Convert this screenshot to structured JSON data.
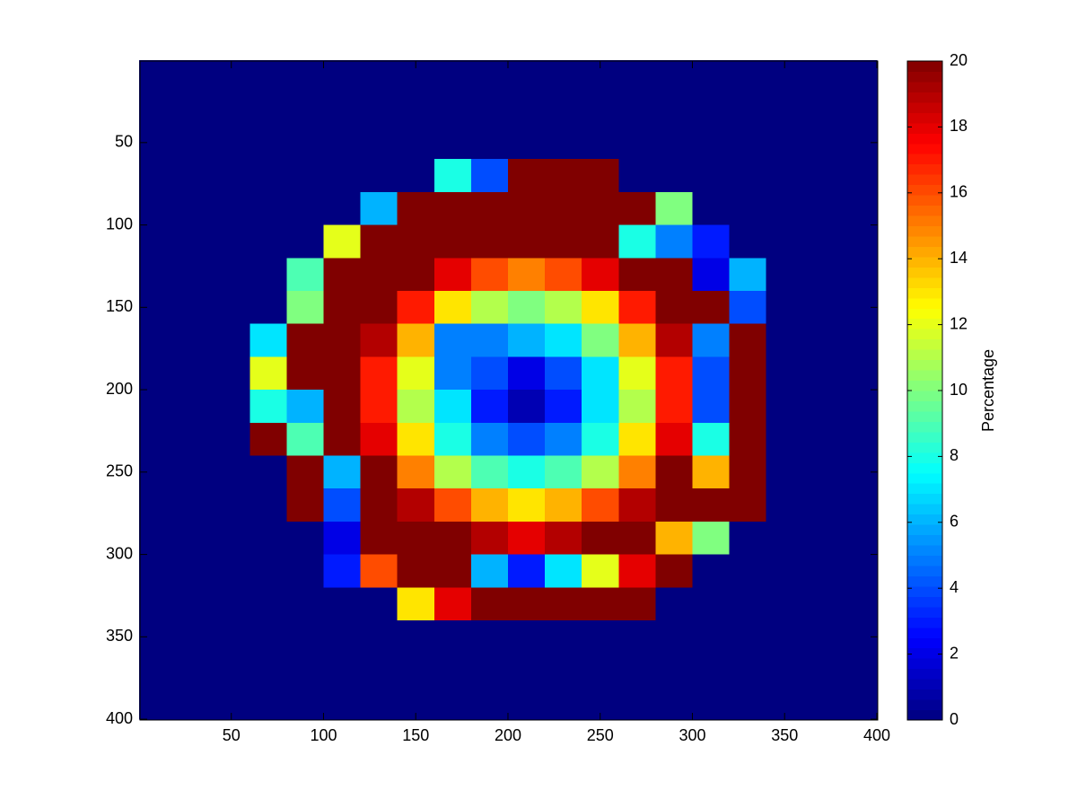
{
  "chart_data": {
    "type": "heatmap",
    "x": [
      10,
      30,
      50,
      70,
      90,
      110,
      130,
      150,
      170,
      190,
      210,
      230,
      250,
      270,
      290,
      310,
      330,
      350,
      370,
      390
    ],
    "y": [
      10,
      30,
      50,
      70,
      90,
      110,
      130,
      150,
      170,
      190,
      210,
      230,
      250,
      270,
      290,
      310,
      330,
      350,
      370,
      390
    ],
    "values": [
      [
        0,
        0,
        0,
        0,
        0,
        0,
        0,
        0,
        0,
        0,
        0,
        0,
        0,
        0,
        0,
        0,
        0,
        0,
        0,
        0
      ],
      [
        0,
        0,
        0,
        0,
        0,
        0,
        0,
        0,
        0,
        0,
        0,
        0,
        0,
        0,
        0,
        0,
        0,
        0,
        0,
        0
      ],
      [
        0,
        0,
        0,
        0,
        0,
        0,
        0,
        0,
        0,
        0,
        0,
        0,
        0,
        0,
        0,
        0,
        0,
        0,
        0,
        0
      ],
      [
        0,
        0,
        0,
        0,
        0,
        0,
        0,
        0,
        8,
        4,
        20,
        20,
        20,
        0,
        0,
        0,
        0,
        0,
        0,
        0
      ],
      [
        0,
        0,
        0,
        0,
        0,
        0,
        6,
        20,
        20,
        20,
        20,
        20,
        20,
        20,
        10,
        0,
        0,
        0,
        0,
        0
      ],
      [
        0,
        0,
        0,
        0,
        0,
        12,
        20,
        20,
        20,
        20,
        20,
        20,
        20,
        8,
        5,
        3,
        0,
        0,
        0,
        0
      ],
      [
        0,
        0,
        0,
        0,
        9,
        20,
        20,
        20,
        18,
        16,
        15,
        16,
        18,
        20,
        20,
        2,
        6,
        0,
        0,
        0
      ],
      [
        0,
        0,
        0,
        0,
        10,
        20,
        20,
        17,
        13,
        11,
        10,
        11,
        13,
        17,
        20,
        20,
        4,
        0,
        0,
        0
      ],
      [
        0,
        0,
        0,
        7,
        20,
        20,
        19,
        14,
        5,
        5,
        6,
        7,
        10,
        14,
        19,
        5,
        20,
        0,
        0,
        0
      ],
      [
        0,
        0,
        0,
        12,
        20,
        20,
        17,
        12,
        5,
        4,
        2,
        4,
        7,
        12,
        17,
        4,
        20,
        0,
        0,
        0
      ],
      [
        0,
        0,
        0,
        8,
        6,
        20,
        17,
        11,
        7,
        3,
        1,
        3,
        7,
        11,
        17,
        4,
        20,
        0,
        0,
        0
      ],
      [
        0,
        0,
        0,
        20,
        9,
        20,
        18,
        13,
        8,
        5,
        4,
        5,
        8,
        13,
        18,
        8,
        20,
        0,
        0,
        0
      ],
      [
        0,
        0,
        0,
        0,
        20,
        6,
        20,
        15,
        11,
        9,
        8,
        9,
        11,
        15,
        20,
        14,
        20,
        0,
        0,
        0
      ],
      [
        0,
        0,
        0,
        0,
        20,
        4,
        20,
        19,
        16,
        14,
        13,
        14,
        16,
        19,
        20,
        20,
        20,
        0,
        0,
        0
      ],
      [
        0,
        0,
        0,
        0,
        0,
        2,
        20,
        20,
        20,
        19,
        18,
        19,
        20,
        20,
        14,
        10,
        0,
        0,
        0,
        0
      ],
      [
        0,
        0,
        0,
        0,
        0,
        3,
        16,
        20,
        20,
        6,
        3,
        7,
        12,
        18,
        20,
        0,
        0,
        0,
        0,
        0
      ],
      [
        0,
        0,
        0,
        0,
        0,
        0,
        0,
        13,
        18,
        20,
        20,
        20,
        20,
        20,
        0,
        0,
        0,
        0,
        0,
        0
      ],
      [
        0,
        0,
        0,
        0,
        0,
        0,
        0,
        0,
        0,
        0,
        0,
        0,
        0,
        0,
        0,
        0,
        0,
        0,
        0,
        0
      ],
      [
        0,
        0,
        0,
        0,
        0,
        0,
        0,
        0,
        0,
        0,
        0,
        0,
        0,
        0,
        0,
        0,
        0,
        0,
        0,
        0
      ],
      [
        0,
        0,
        0,
        0,
        0,
        0,
        0,
        0,
        0,
        0,
        0,
        0,
        0,
        0,
        0,
        0,
        0,
        0,
        0,
        0
      ]
    ],
    "xlim": [
      0.5,
      400.5
    ],
    "ylim": [
      0.5,
      400.5
    ],
    "y_reversed": true,
    "xticks": [
      50,
      100,
      150,
      200,
      250,
      300,
      350,
      400
    ],
    "yticks": [
      50,
      100,
      150,
      200,
      250,
      300,
      350,
      400
    ],
    "colormap": "jet",
    "clim": [
      0,
      20
    ],
    "cticks": [
      0,
      2,
      4,
      6,
      8,
      10,
      12,
      14,
      16,
      18,
      20
    ],
    "colorbar_label": "Percentage"
  }
}
